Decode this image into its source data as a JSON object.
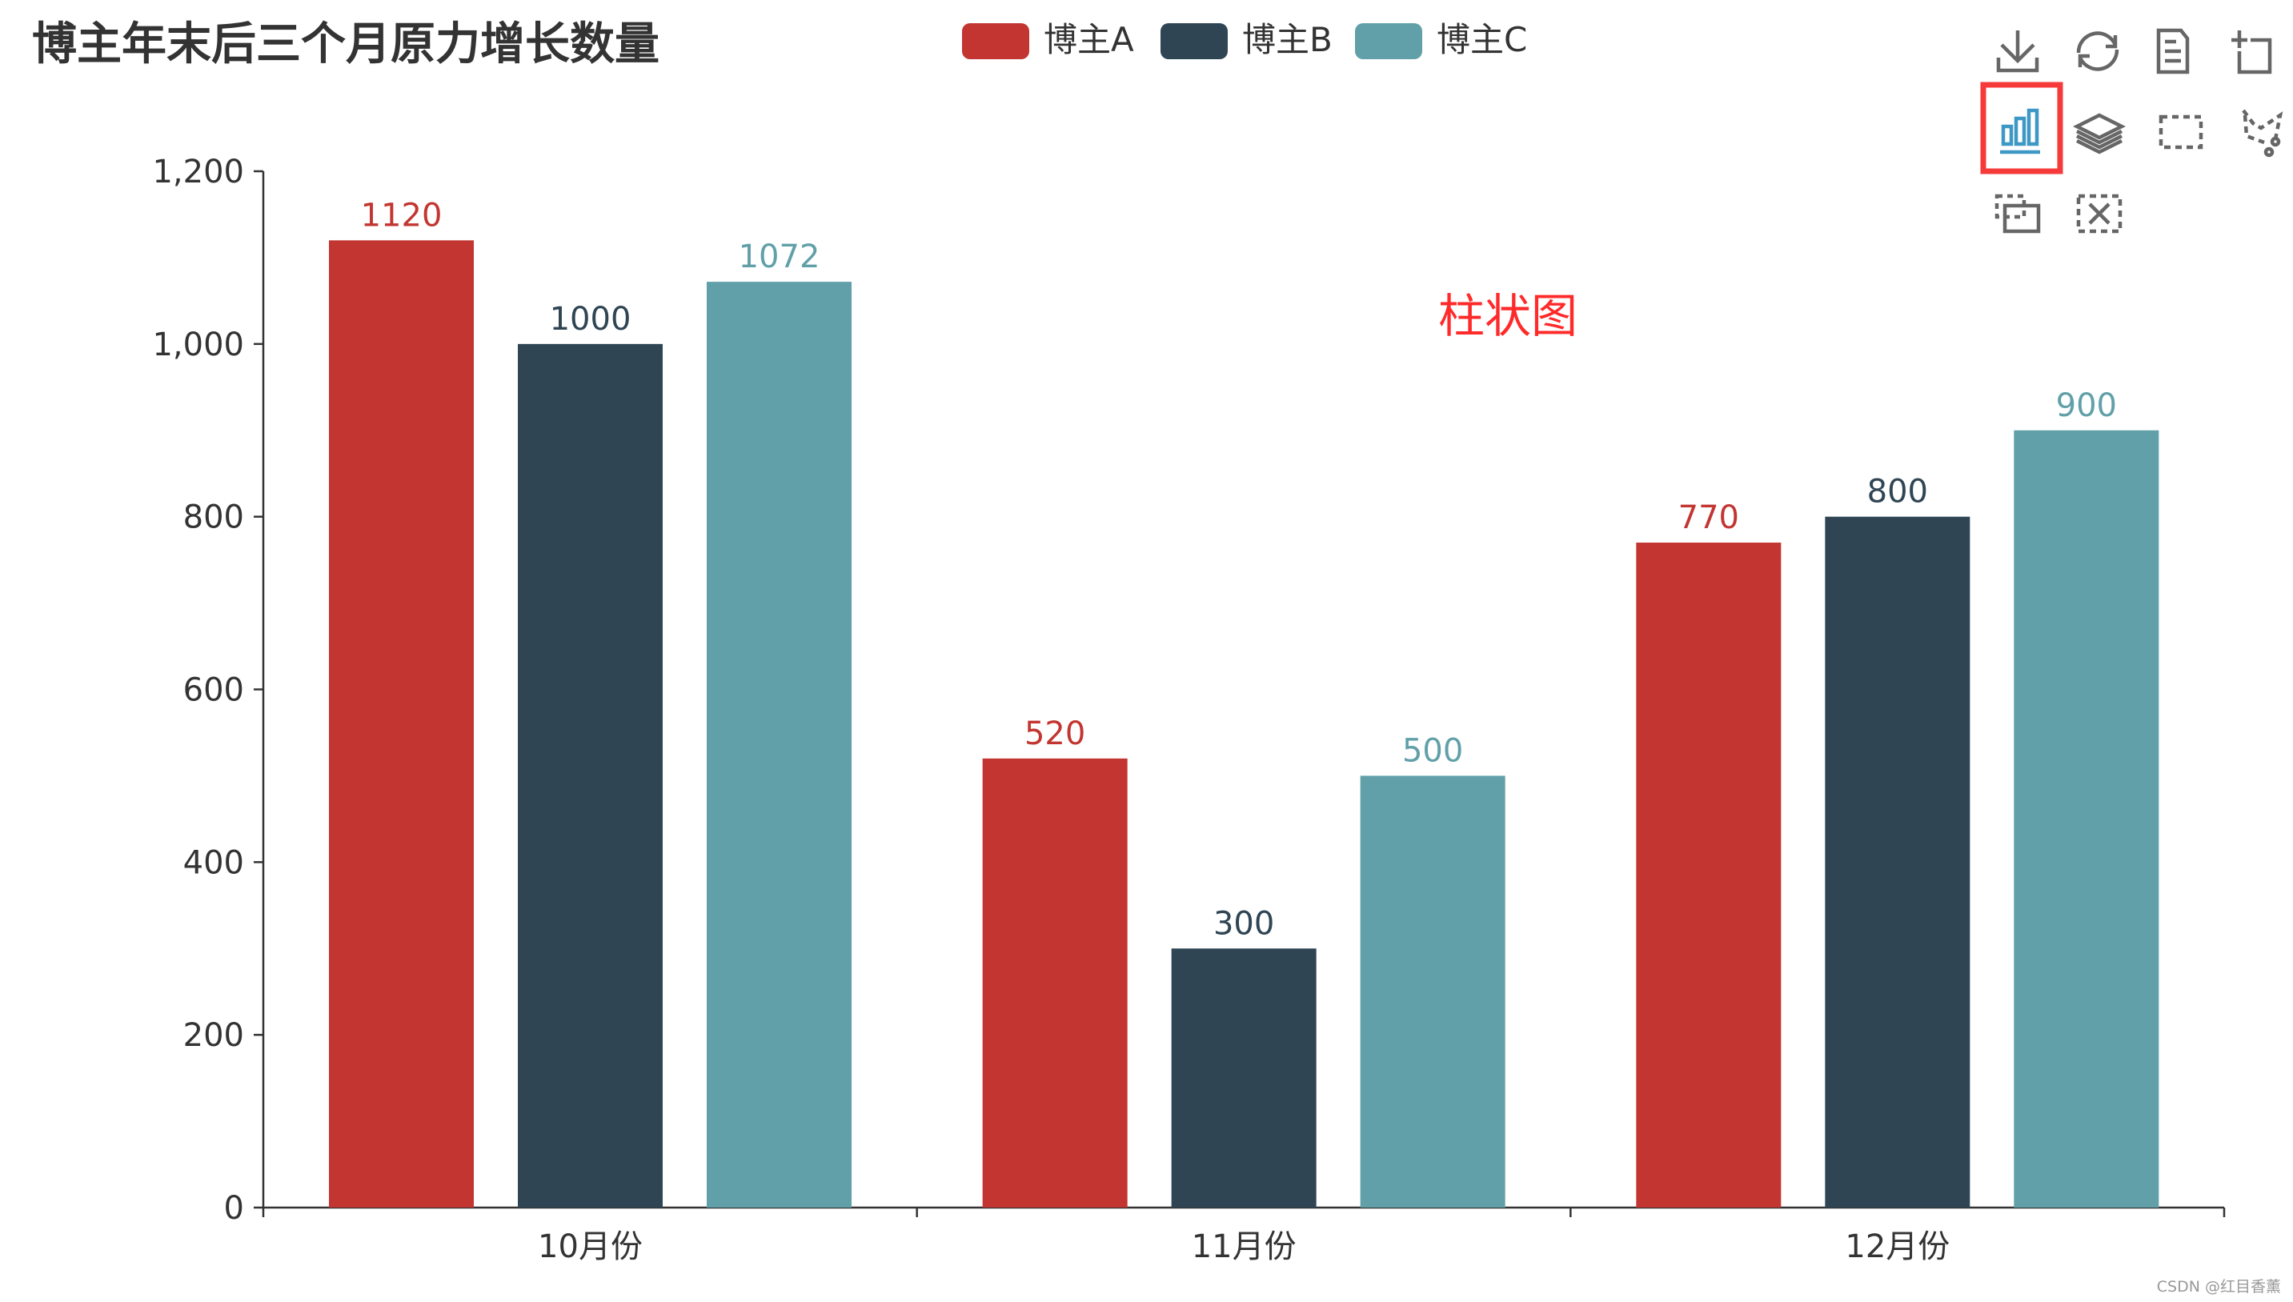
{
  "chart_data": {
    "type": "bar",
    "title": "博主年末后三个月原力增长数量",
    "categories": [
      "10月份",
      "11月份",
      "12月份"
    ],
    "series": [
      {
        "name": "博主A",
        "values": [
          1120,
          520,
          770
        ],
        "color": "#c23531"
      },
      {
        "name": "博主B",
        "values": [
          1000,
          300,
          800
        ],
        "color": "#2f4554"
      },
      {
        "name": "博主C",
        "values": [
          1072,
          500,
          900
        ],
        "color": "#61a0a8"
      }
    ],
    "ylim": [
      0,
      1200
    ],
    "yticks": [
      "0",
      "200",
      "400",
      "600",
      "800",
      "1,000",
      "1,200"
    ],
    "grid": false,
    "legend": "top-center",
    "annotation": "柱状图",
    "annotation_color": "#ff2a2a"
  },
  "toolbox": {
    "icons": [
      "download-icon",
      "refresh-icon",
      "data-view-icon",
      "zoom-icon",
      "bar-chart-icon",
      "stack-icon",
      "rect-select-icon",
      "lasso-select-icon",
      "keep-select-icon",
      "clear-select-icon"
    ],
    "active": "bar-chart-icon",
    "active_color": "#3e98c5",
    "highlight_color": "#f63a3a"
  },
  "watermark": "CSDN @红目香薰"
}
